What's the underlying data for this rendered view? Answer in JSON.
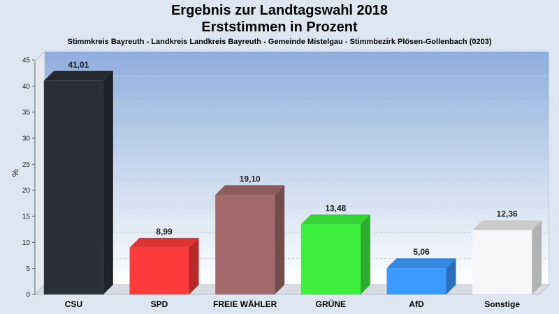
{
  "header": {
    "title_line1": "Ergebnis zur Landtagswahl 2018",
    "title_line2": "Erststimmen in Prozent",
    "subtitle": "Stimmkreis Bayreuth - Landkreis Landkreis Bayreuth - Gemeinde Mistelgau - Stimmbezirk Plösen-Gollenbach (0203)"
  },
  "chart_data": {
    "type": "bar",
    "title": "Ergebnis zur Landtagswahl 2018",
    "subtitle": "Erststimmen in Prozent",
    "ylabel": "%",
    "xlabel": "",
    "ylim": [
      0,
      45
    ],
    "yticks": [
      0,
      5,
      10,
      15,
      20,
      25,
      30,
      35,
      40,
      45
    ],
    "grid": true,
    "categories": [
      "CSU",
      "SPD",
      "FREIE WÄHLER",
      "GRÜNE",
      "AfD",
      "Sonstige"
    ],
    "values": [
      41.01,
      8.99,
      19.1,
      13.48,
      5.06,
      12.36
    ],
    "value_labels": [
      "41,01",
      "8,99",
      "19,10",
      "13,48",
      "5,06",
      "12,36"
    ],
    "colors": [
      "#2b2f36",
      "#ff3a3a",
      "#a06a6a",
      "#3ef03e",
      "#3a9aff",
      "#f7f7f9"
    ]
  }
}
